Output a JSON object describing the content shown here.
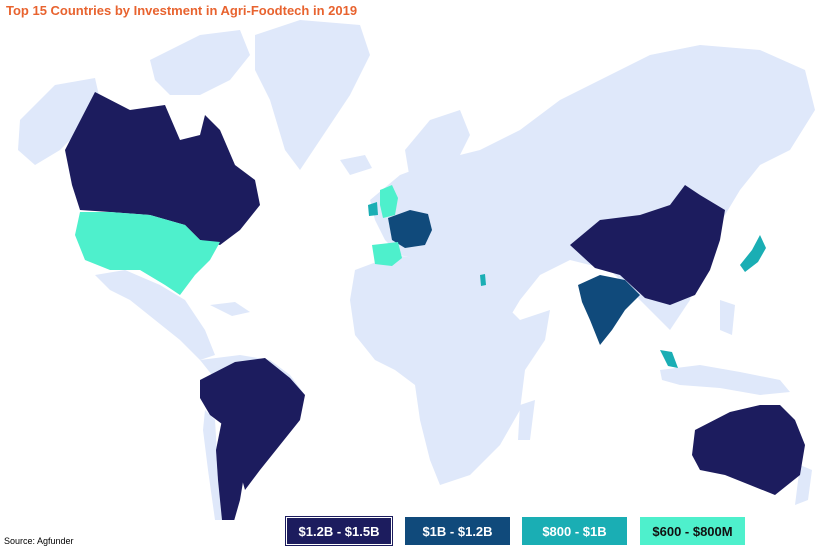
{
  "title": "Top 15 Countries by Investment in Agri-Foodtech in 2019",
  "source": "Source: Agfunder",
  "colors": {
    "land": "#dfe8fa",
    "tier1": "#1c1c5e",
    "tier2": "#104a7b",
    "tier3": "#1aaeb4",
    "tier4": "#4ef0cc"
  },
  "legend": [
    {
      "label": "$1.2B - $1.5B",
      "color": "#1c1c5e"
    },
    {
      "label": "$1B - $1.2B",
      "color": "#104a7b"
    },
    {
      "label": "$800 - $1B",
      "color": "#1aaeb4"
    },
    {
      "label": "$600 - $800M",
      "color": "#4ef0cc"
    }
  ]
}
